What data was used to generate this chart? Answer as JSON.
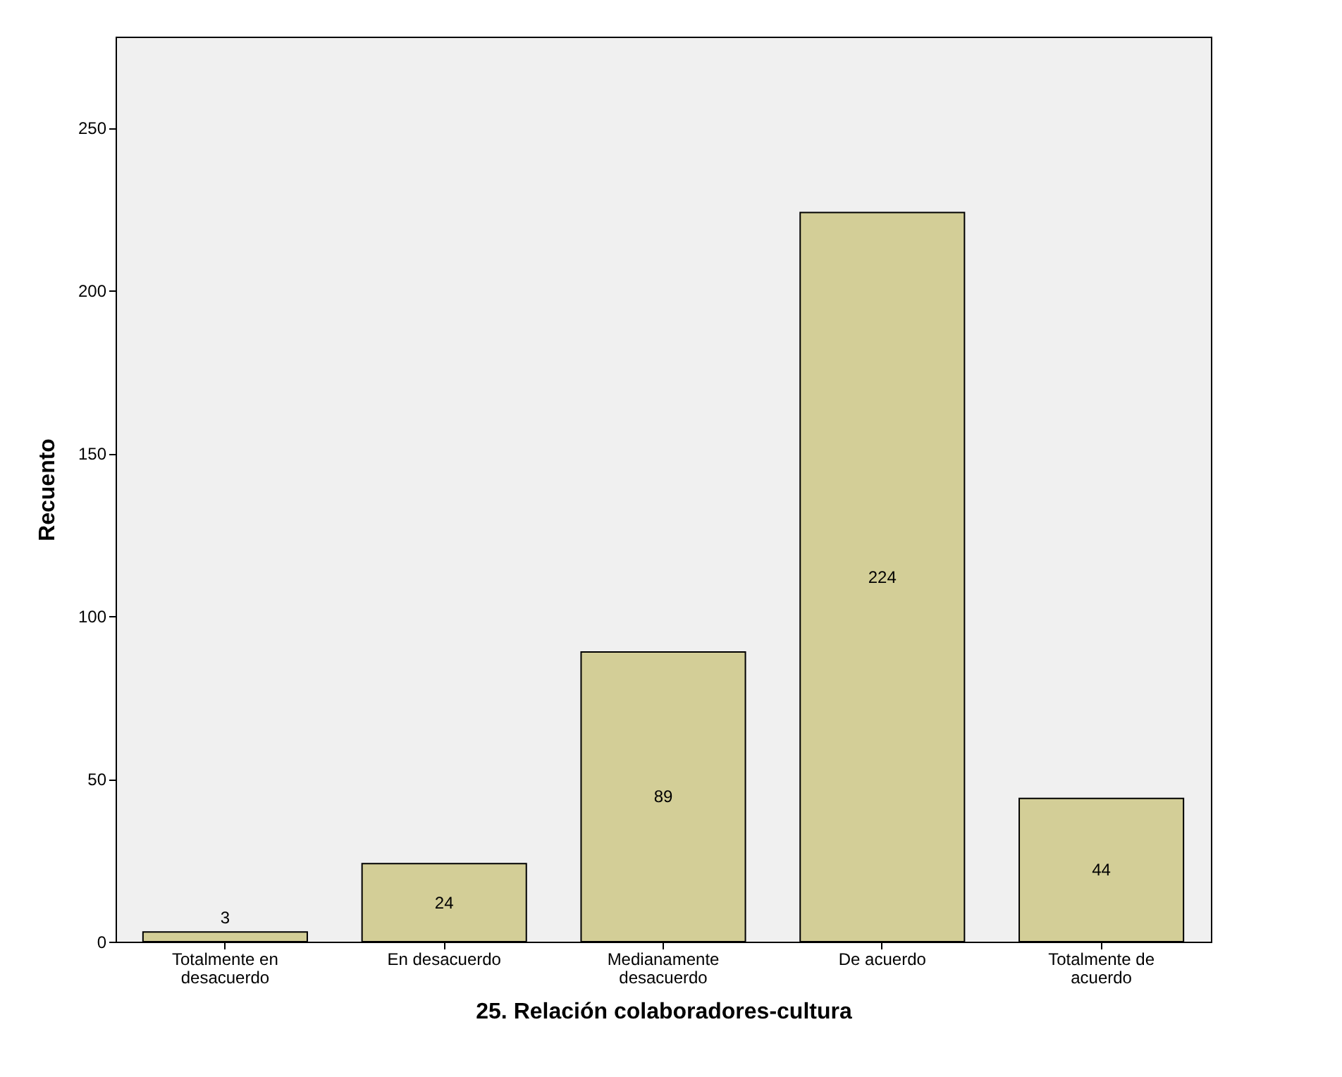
{
  "chart_data": {
    "type": "bar",
    "categories": [
      "Totalmente en desacuerdo",
      "En desacuerdo",
      "Medianamente desacuerdo",
      "De acuerdo",
      "Totalmente de acuerdo"
    ],
    "values": [
      3,
      24,
      89,
      224,
      44
    ],
    "color": "#d3ce97",
    "xlabel": "25. Relación colaboradores-cultura",
    "ylabel": "Recuento",
    "ylim": [
      0,
      278
    ],
    "yticks": [
      0,
      50,
      100,
      150,
      200,
      250
    ],
    "data_labels": true,
    "grid": false
  }
}
